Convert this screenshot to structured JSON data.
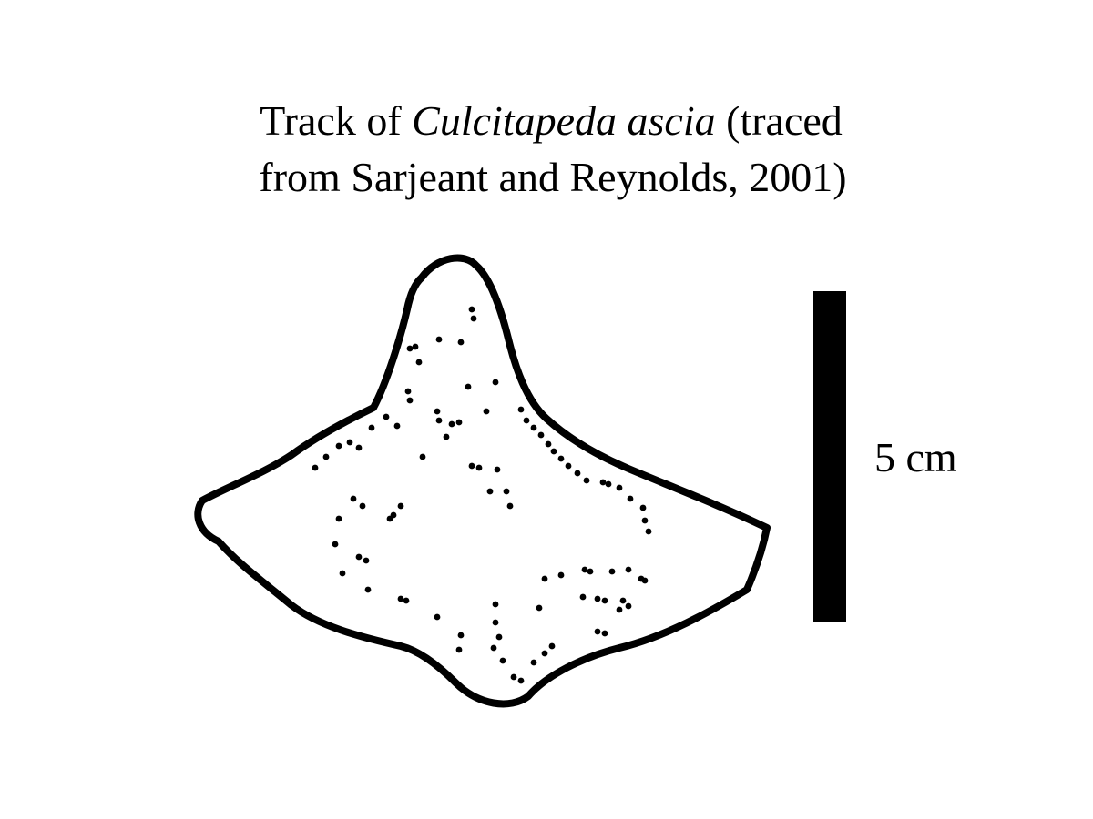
{
  "figure": {
    "title_line1_prefix": "Track of ",
    "title_line1_italic": "Culcitapeda ascia",
    "title_line1_suffix": " (traced",
    "title_line2": "from Sarjeant and Reynolds, 2001)",
    "scale_label": "5 cm",
    "outline_color": "#000000",
    "background_color": "#ffffff"
  }
}
